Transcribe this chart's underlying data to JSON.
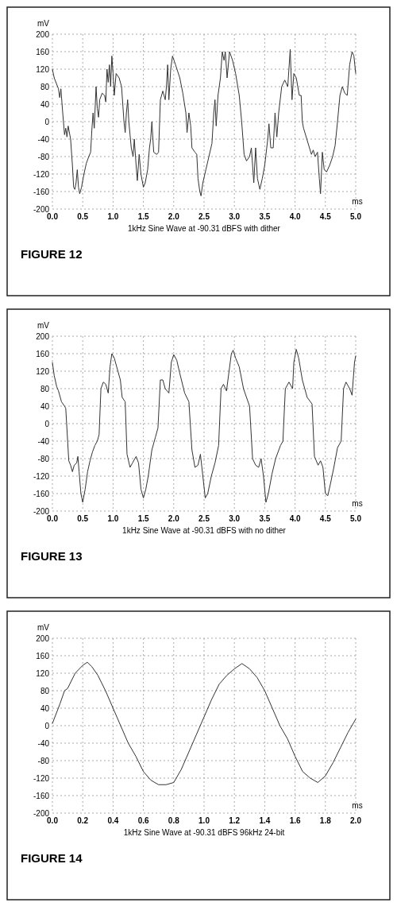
{
  "chart_data": [
    {
      "type": "line",
      "title": "1kHz Sine Wave at -90.31 dBFS with dither",
      "xlabel": "ms",
      "ylabel": "mV",
      "annotations": [
        "FIGURE 12"
      ],
      "grid": true,
      "xlim": [
        0,
        5
      ],
      "ylim": [
        -200,
        200
      ],
      "xticks": [
        {
          "value": 0,
          "label": "0.0"
        },
        {
          "value": 0.5,
          "label": "0.5"
        },
        {
          "value": 1,
          "label": "1.0"
        },
        {
          "value": 1.5,
          "label": "1.5"
        },
        {
          "value": 2,
          "label": "2.0"
        },
        {
          "value": 2.5,
          "label": "2.5"
        },
        {
          "value": 3,
          "label": "3.0"
        },
        {
          "value": 3.5,
          "label": "3.5"
        },
        {
          "value": 4,
          "label": "4.0"
        },
        {
          "value": 4.5,
          "label": "4.5"
        },
        {
          "value": 5,
          "label": "5.0"
        }
      ],
      "yticks": [
        -200,
        -160,
        -120,
        -80,
        -40,
        0,
        40,
        80,
        120,
        160,
        200
      ],
      "series": [
        {
          "color": "#333333",
          "x": [
            0,
            0.03,
            0.1,
            0.12,
            0.14,
            0.17,
            0.2,
            0.22,
            0.24,
            0.26,
            0.3,
            0.33,
            0.35,
            0.37,
            0.39,
            0.41,
            0.43,
            0.45,
            0.48,
            0.52,
            0.56,
            0.6,
            0.63,
            0.65,
            0.67,
            0.69,
            0.72,
            0.74,
            0.76,
            0.78,
            0.82,
            0.86,
            0.88,
            0.9,
            0.92,
            0.94,
            0.96,
            0.98,
            1.0,
            1.02,
            1.05,
            1.1,
            1.14,
            1.18,
            1.2,
            1.22,
            1.24,
            1.26,
            1.3,
            1.33,
            1.35,
            1.38,
            1.4,
            1.43,
            1.46,
            1.5,
            1.53,
            1.57,
            1.6,
            1.62,
            1.64,
            1.67,
            1.72,
            1.75,
            1.78,
            1.82,
            1.86,
            1.88,
            1.9,
            1.92,
            1.95,
            1.98,
            2.03,
            2.1,
            2.15,
            2.2,
            2.22,
            2.25,
            2.28,
            2.3,
            2.35,
            2.38,
            2.4,
            2.43,
            2.45,
            2.48,
            2.53,
            2.58,
            2.63,
            2.66,
            2.68,
            2.7,
            2.73,
            2.77,
            2.8,
            2.83,
            2.85,
            2.88,
            2.92,
            2.97,
            3.02,
            3.08,
            3.12,
            3.16,
            3.2,
            3.25,
            3.28,
            3.32,
            3.35,
            3.38,
            3.42,
            3.46,
            3.5,
            3.55,
            3.57,
            3.6,
            3.64,
            3.67,
            3.7,
            3.73,
            3.78,
            3.83,
            3.88,
            3.92,
            3.95,
            3.98,
            4.02,
            4.07,
            4.1,
            4.12,
            4.14,
            4.27,
            4.3,
            4.33,
            4.37,
            4.4,
            4.42,
            4.45,
            4.48,
            4.52,
            4.57,
            4.62,
            4.66,
            4.7,
            4.74,
            4.78,
            4.82,
            4.86,
            4.9,
            4.94,
            4.97,
            5.0
          ],
          "values": [
            120,
            100,
            75,
            55,
            75,
            20,
            -30,
            -15,
            -35,
            -10,
            -40,
            -100,
            -150,
            -155,
            -140,
            -110,
            -150,
            -165,
            -150,
            -120,
            -95,
            -80,
            -70,
            -20,
            20,
            -15,
            80,
            30,
            10,
            50,
            65,
            60,
            45,
            120,
            90,
            130,
            80,
            150,
            110,
            60,
            110,
            100,
            80,
            0,
            -25,
            20,
            50,
            0,
            -60,
            -80,
            -40,
            -100,
            -135,
            -75,
            -120,
            -150,
            -140,
            -110,
            -60,
            -40,
            0,
            -70,
            -75,
            -70,
            50,
            70,
            50,
            80,
            130,
            50,
            120,
            150,
            130,
            100,
            65,
            20,
            -25,
            20,
            -10,
            -60,
            -70,
            -75,
            -130,
            -160,
            -170,
            -140,
            -110,
            -80,
            -50,
            20,
            50,
            -10,
            60,
            100,
            160,
            140,
            160,
            100,
            160,
            140,
            110,
            60,
            0,
            -75,
            -90,
            -80,
            -60,
            -140,
            -60,
            -130,
            -155,
            -130,
            -100,
            -40,
            -5,
            -60,
            -60,
            20,
            -35,
            20,
            80,
            95,
            80,
            165,
            50,
            110,
            100,
            60,
            60,
            0,
            -15,
            -75,
            -65,
            -80,
            -70,
            -130,
            -165,
            -70,
            -110,
            -115,
            -100,
            -80,
            -55,
            0,
            60,
            80,
            65,
            60,
            130,
            160,
            150,
            110
          ]
        }
      ]
    },
    {
      "type": "line",
      "title": "1kHz Sine Wave at -90.31 dBFS with no dither",
      "xlabel": "ms",
      "ylabel": "mV",
      "annotations": [
        "FIGURE 13"
      ],
      "grid": true,
      "xlim": [
        0,
        5
      ],
      "ylim": [
        -200,
        200
      ],
      "xticks": [
        {
          "value": 0,
          "label": "0.0"
        },
        {
          "value": 0.5,
          "label": "0.5"
        },
        {
          "value": 1,
          "label": "1.0"
        },
        {
          "value": 1.5,
          "label": "1.5"
        },
        {
          "value": 2,
          "label": "2.0"
        },
        {
          "value": 2.5,
          "label": "2.5"
        },
        {
          "value": 3,
          "label": "3.0"
        },
        {
          "value": 3.5,
          "label": "3.5"
        },
        {
          "value": 4,
          "label": "4.0"
        },
        {
          "value": 4.5,
          "label": "4.5"
        },
        {
          "value": 5,
          "label": "5.0"
        }
      ],
      "yticks": [
        -200,
        -160,
        -120,
        -80,
        -40,
        0,
        40,
        80,
        120,
        160,
        200
      ],
      "series": [
        {
          "color": "#333333",
          "x": [
            0,
            0.03,
            0.07,
            0.1,
            0.15,
            0.2,
            0.22,
            0.27,
            0.3,
            0.33,
            0.36,
            0.4,
            0.42,
            0.44,
            0.47,
            0.5,
            0.54,
            0.58,
            0.62,
            0.66,
            0.7,
            0.74,
            0.77,
            0.8,
            0.84,
            0.88,
            0.92,
            0.95,
            0.98,
            1.02,
            1.08,
            1.12,
            1.15,
            1.2,
            1.23,
            1.28,
            1.32,
            1.38,
            1.42,
            1.46,
            1.5,
            1.54,
            1.58,
            1.64,
            1.7,
            1.74,
            1.78,
            1.82,
            1.86,
            1.92,
            1.96,
            2.0,
            2.05,
            2.1,
            2.18,
            2.25,
            2.3,
            2.35,
            2.4,
            2.44,
            2.48,
            2.52,
            2.56,
            2.62,
            2.68,
            2.74,
            2.78,
            2.82,
            2.87,
            2.95,
            2.98,
            3.02,
            3.08,
            3.15,
            3.2,
            3.25,
            3.3,
            3.35,
            3.4,
            3.44,
            3.48,
            3.52,
            3.56,
            3.62,
            3.68,
            3.76,
            3.8,
            3.84,
            3.9,
            3.96,
            3.98,
            4.02,
            4.06,
            4.12,
            4.2,
            4.28,
            4.32,
            4.38,
            4.42,
            4.46,
            4.5,
            4.54,
            4.58,
            4.64,
            4.7,
            4.76,
            4.8,
            4.84,
            4.9,
            4.94,
            4.98,
            5.0
          ],
          "values": [
            140,
            110,
            85,
            75,
            50,
            40,
            35,
            -85,
            -95,
            -110,
            -95,
            -90,
            -75,
            -110,
            -160,
            -180,
            -150,
            -110,
            -85,
            -65,
            -50,
            -40,
            -25,
            80,
            95,
            90,
            70,
            130,
            160,
            150,
            120,
            100,
            60,
            50,
            -70,
            -100,
            -90,
            -75,
            -90,
            -150,
            -170,
            -150,
            -120,
            -60,
            -30,
            -10,
            100,
            100,
            80,
            70,
            140,
            158,
            145,
            115,
            70,
            50,
            -60,
            -100,
            -95,
            -70,
            -120,
            -170,
            -160,
            -120,
            -90,
            -50,
            80,
            90,
            75,
            160,
            168,
            150,
            130,
            80,
            60,
            40,
            -80,
            -95,
            -100,
            -80,
            -120,
            -180,
            -160,
            -115,
            -80,
            -50,
            -40,
            80,
            95,
            80,
            140,
            170,
            150,
            100,
            60,
            45,
            -75,
            -95,
            -85,
            -100,
            -160,
            -165,
            -140,
            -100,
            -55,
            -40,
            80,
            95,
            80,
            65,
            140,
            155
          ]
        }
      ]
    },
    {
      "type": "line",
      "title": "1kHz Sine Wave at -90.31 dBFS 96kHz 24-bit",
      "xlabel": "ms",
      "ylabel": "mV",
      "annotations": [
        "FIGURE 14"
      ],
      "grid": true,
      "xlim": [
        0,
        2
      ],
      "ylim": [
        -200,
        200
      ],
      "xticks": [
        {
          "value": 0,
          "label": "0.0"
        },
        {
          "value": 0.2,
          "label": "0.2"
        },
        {
          "value": 0.4,
          "label": "0.4"
        },
        {
          "value": 0.6,
          "label": "0.6"
        },
        {
          "value": 0.8,
          "label": "0.8"
        },
        {
          "value": 1,
          "label": "1.0"
        },
        {
          "value": 1.2,
          "label": "1.2"
        },
        {
          "value": 1.4,
          "label": "1.4"
        },
        {
          "value": 1.6,
          "label": "1.6"
        },
        {
          "value": 1.8,
          "label": "1.8"
        },
        {
          "value": 2,
          "label": "2.0"
        }
      ],
      "yticks": [
        -200,
        -160,
        -120,
        -80,
        -40,
        0,
        40,
        80,
        120,
        160,
        200
      ],
      "series": [
        {
          "color": "#333333",
          "x": [
            0,
            0.05,
            0.08,
            0.1,
            0.15,
            0.2,
            0.23,
            0.26,
            0.3,
            0.35,
            0.4,
            0.45,
            0.5,
            0.55,
            0.6,
            0.65,
            0.7,
            0.75,
            0.8,
            0.85,
            0.9,
            0.95,
            1.0,
            1.05,
            1.1,
            1.15,
            1.2,
            1.25,
            1.3,
            1.35,
            1.4,
            1.45,
            1.5,
            1.55,
            1.6,
            1.65,
            1.7,
            1.75,
            1.8,
            1.85,
            1.9,
            1.95,
            2.0
          ],
          "values": [
            5,
            50,
            80,
            85,
            120,
            138,
            145,
            135,
            115,
            80,
            40,
            0,
            -40,
            -70,
            -105,
            -125,
            -135,
            -135,
            -130,
            -100,
            -60,
            -20,
            20,
            60,
            95,
            115,
            130,
            142,
            130,
            110,
            80,
            40,
            0,
            -30,
            -70,
            -105,
            -120,
            -130,
            -115,
            -85,
            -50,
            -15,
            15
          ]
        }
      ]
    }
  ]
}
